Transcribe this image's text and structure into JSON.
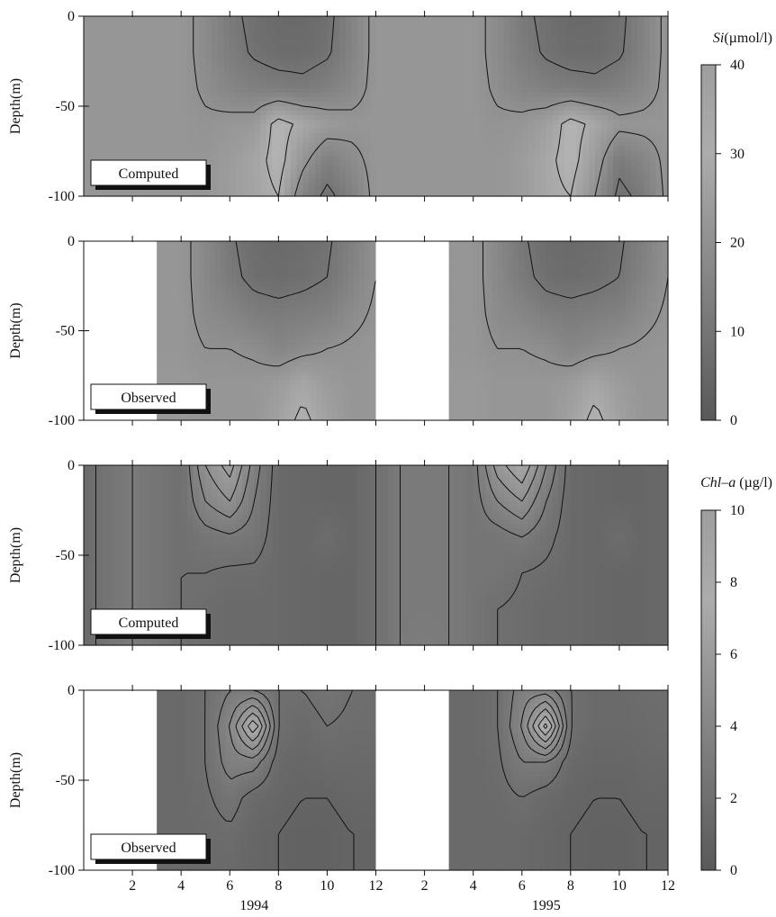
{
  "chart_data": [
    {
      "type": "heatmap",
      "variable": "Si",
      "panel_label": "Computed",
      "ylabel": "Depth(m)",
      "ylim": [
        -100,
        0
      ],
      "yticks": [
        "0",
        "-50",
        "-100"
      ],
      "xlim_months": [
        0,
        24
      ],
      "contour_levels": [
        10,
        20,
        30
      ],
      "observed_data_gaps": [],
      "profile_months": [
        0,
        1,
        2,
        3,
        4,
        5,
        6,
        7,
        8,
        9,
        10,
        11,
        12,
        13,
        14,
        15,
        16,
        17,
        18,
        19,
        20,
        21,
        22,
        23,
        24
      ],
      "profile_depths": [
        0,
        -20,
        -40,
        -60,
        -80,
        -100
      ],
      "values": [
        [
          22,
          22,
          22,
          22,
          22,
          22
        ],
        [
          22,
          22,
          22,
          22,
          22,
          22
        ],
        [
          22,
          22,
          22,
          22,
          22,
          22
        ],
        [
          22,
          22,
          22,
          22,
          22,
          22
        ],
        [
          22,
          22,
          22,
          22,
          22,
          22
        ],
        [
          18,
          18,
          19,
          21,
          22,
          22
        ],
        [
          12,
          13,
          16,
          22,
          24,
          24
        ],
        [
          8,
          9,
          14,
          23,
          27,
          27
        ],
        [
          6,
          7,
          13,
          33,
          33,
          30
        ],
        [
          6,
          7,
          12,
          28,
          22,
          15
        ],
        [
          8,
          9,
          14,
          24,
          14,
          8
        ],
        [
          15,
          15,
          17,
          22,
          18,
          14
        ],
        [
          22,
          22,
          22,
          22,
          22,
          22
        ],
        [
          22,
          22,
          22,
          22,
          22,
          22
        ],
        [
          22,
          22,
          22,
          22,
          22,
          22
        ],
        [
          22,
          22,
          22,
          22,
          22,
          22
        ],
        [
          22,
          22,
          22,
          22,
          22,
          22
        ],
        [
          18,
          18,
          19,
          21,
          22,
          22
        ],
        [
          12,
          13,
          16,
          22,
          24,
          24
        ],
        [
          8,
          9,
          14,
          25,
          28,
          28
        ],
        [
          6,
          7,
          13,
          33,
          33,
          30
        ],
        [
          6,
          7,
          12,
          28,
          24,
          20
        ],
        [
          8,
          9,
          14,
          22,
          12,
          8
        ],
        [
          15,
          15,
          17,
          22,
          16,
          12
        ],
        [
          22,
          22,
          22,
          22,
          22,
          22
        ]
      ]
    },
    {
      "type": "heatmap",
      "variable": "Si",
      "panel_label": "Observed",
      "ylabel": "Depth(m)",
      "ylim": [
        -100,
        0
      ],
      "yticks": [
        "0",
        "-50",
        "-100"
      ],
      "xlim_months": [
        0,
        24
      ],
      "contour_levels": [
        10,
        20,
        30
      ],
      "observed_data_gaps": [
        [
          0,
          3
        ],
        [
          12,
          15
        ]
      ],
      "profile_months": [
        3,
        4,
        5,
        6,
        7,
        8,
        9,
        10,
        11,
        12,
        15,
        16,
        17,
        18,
        19,
        20,
        21,
        22,
        23,
        24
      ],
      "profile_depths": [
        0,
        -20,
        -40,
        -60,
        -80,
        -100
      ],
      "values": [
        [
          22,
          22,
          22,
          22,
          23,
          23
        ],
        [
          22,
          22,
          22,
          22,
          23,
          23
        ],
        [
          17,
          17,
          18,
          20,
          22,
          22
        ],
        [
          11,
          12,
          16,
          20,
          22,
          22
        ],
        [
          7,
          8,
          13,
          19,
          22,
          22
        ],
        [
          6,
          7,
          12,
          16,
          24,
          26
        ],
        [
          7,
          8,
          13,
          18,
          28,
          32
        ],
        [
          9,
          10,
          14,
          20,
          24,
          26
        ],
        [
          14,
          15,
          18,
          21,
          22,
          22
        ],
        [
          20,
          20,
          21,
          22,
          22,
          22
        ],
        [
          22,
          22,
          22,
          22,
          23,
          23
        ],
        [
          22,
          22,
          22,
          22,
          23,
          23
        ],
        [
          17,
          17,
          18,
          20,
          22,
          22
        ],
        [
          11,
          12,
          16,
          20,
          22,
          22
        ],
        [
          7,
          8,
          13,
          19,
          22,
          22
        ],
        [
          6,
          7,
          12,
          16,
          24,
          26
        ],
        [
          7,
          8,
          13,
          18,
          28,
          32
        ],
        [
          9,
          10,
          14,
          20,
          24,
          26
        ],
        [
          14,
          15,
          18,
          21,
          22,
          22
        ],
        [
          20,
          20,
          21,
          22,
          22,
          22
        ]
      ]
    },
    {
      "type": "heatmap",
      "variable": "Chl-a",
      "panel_label": "Computed",
      "ylabel": "Depth(m)",
      "ylim": [
        -100,
        0
      ],
      "yticks": [
        "0",
        "-50",
        "-100"
      ],
      "xlim_months": [
        0,
        24
      ],
      "contour_levels": [
        2,
        3,
        4,
        5,
        6,
        7,
        8
      ],
      "observed_data_gaps": [],
      "profile_months": [
        0,
        1,
        2,
        3,
        4,
        5,
        6,
        7,
        8,
        9,
        10,
        11,
        12,
        13,
        14,
        15,
        16,
        17,
        18,
        19,
        20,
        21,
        22,
        23,
        24
      ],
      "profile_depths": [
        0,
        -20,
        -40,
        -60,
        -80,
        -100
      ],
      "values": [
        [
          1.5,
          1.5,
          1.5,
          1.5,
          1.5,
          1.5
        ],
        [
          2.5,
          2.5,
          2.5,
          2.5,
          2.5,
          2.5
        ],
        [
          3.0,
          3.0,
          3.0,
          3.0,
          3.0,
          3.0
        ],
        [
          2.5,
          2.5,
          2.5,
          2.5,
          2.5,
          2.5
        ],
        [
          2.0,
          2.0,
          2.0,
          2.0,
          2.0,
          2.0
        ],
        [
          5.0,
          4.0,
          2.5,
          2.0,
          1.8,
          1.8
        ],
        [
          6.5,
          5.0,
          2.8,
          1.8,
          1.5,
          1.5
        ],
        [
          3.5,
          3.0,
          2.5,
          1.8,
          1.5,
          1.5
        ],
        [
          1.5,
          1.5,
          1.5,
          1.5,
          1.5,
          1.5
        ],
        [
          1.3,
          1.3,
          1.3,
          1.3,
          1.3,
          1.3
        ],
        [
          1.2,
          1.2,
          1.8,
          1.2,
          1.2,
          1.2
        ],
        [
          1.2,
          1.2,
          1.2,
          1.2,
          1.2,
          1.2
        ],
        [
          2.0,
          2.0,
          2.0,
          2.0,
          2.0,
          2.0
        ],
        [
          3.0,
          3.0,
          3.0,
          3.0,
          3.0,
          3.0
        ],
        [
          3.0,
          3.0,
          3.0,
          3.0,
          3.0,
          3.2
        ],
        [
          3.0,
          3.0,
          3.0,
          3.0,
          3.0,
          3.0
        ],
        [
          2.5,
          2.5,
          2.5,
          2.5,
          2.5,
          2.5
        ],
        [
          5.5,
          4.0,
          2.5,
          2.5,
          2.0,
          2.0
        ],
        [
          7.0,
          5.0,
          3.0,
          2.0,
          1.8,
          1.8
        ],
        [
          4.0,
          3.0,
          2.3,
          1.8,
          1.5,
          1.5
        ],
        [
          1.5,
          1.5,
          1.5,
          1.5,
          1.5,
          1.5
        ],
        [
          1.3,
          1.3,
          1.3,
          1.3,
          1.3,
          1.3
        ],
        [
          1.2,
          1.2,
          1.8,
          1.2,
          1.2,
          1.2
        ],
        [
          1.2,
          1.2,
          1.2,
          1.2,
          1.2,
          1.2
        ],
        [
          1.5,
          1.5,
          1.5,
          1.5,
          1.5,
          1.5
        ]
      ]
    },
    {
      "type": "heatmap",
      "variable": "Chl-a",
      "panel_label": "Observed",
      "ylabel": "Depth(m)",
      "ylim": [
        -100,
        0
      ],
      "yticks": [
        "0",
        "-50",
        "-100"
      ],
      "xlim_months": [
        0,
        24
      ],
      "contour_levels": [
        1,
        2,
        3,
        4,
        5,
        6,
        7,
        8,
        9
      ],
      "observed_data_gaps": [
        [
          0,
          3
        ],
        [
          12,
          15
        ]
      ],
      "profile_months": [
        3,
        4,
        5,
        6,
        7,
        8,
        9,
        10,
        11,
        12,
        15,
        16,
        17,
        18,
        19,
        20,
        21,
        22,
        23,
        24
      ],
      "profile_depths": [
        0,
        -20,
        -40,
        -60,
        -80,
        -100
      ],
      "values": [
        [
          1.5,
          1.5,
          1.5,
          1.5,
          1.5,
          1.5
        ],
        [
          1.5,
          1.5,
          1.5,
          1.5,
          1.5,
          1.5
        ],
        [
          2.0,
          2.0,
          2.0,
          1.8,
          1.6,
          1.5
        ],
        [
          3.0,
          4.0,
          3.5,
          2.5,
          1.8,
          1.5
        ],
        [
          3.0,
          8.0,
          3.5,
          1.5,
          1.2,
          1.2
        ],
        [
          2.0,
          2.0,
          1.5,
          1.2,
          1.0,
          1.0
        ],
        [
          2.0,
          1.5,
          1.2,
          1.0,
          0.8,
          0.8
        ],
        [
          2.5,
          2.0,
          1.5,
          1.0,
          0.8,
          0.8
        ],
        [
          2.0,
          1.8,
          1.5,
          1.2,
          1.0,
          1.0
        ],
        [
          1.8,
          1.8,
          1.5,
          1.2,
          1.0,
          1.0
        ],
        [
          1.5,
          1.5,
          1.5,
          1.5,
          1.5,
          1.5
        ],
        [
          1.5,
          1.5,
          1.5,
          1.5,
          1.5,
          1.5
        ],
        [
          2.0,
          2.0,
          1.8,
          1.6,
          1.5,
          1.5
        ],
        [
          3.5,
          4.0,
          3.0,
          2.0,
          1.5,
          1.5
        ],
        [
          3.5,
          8.5,
          3.0,
          1.5,
          1.2,
          1.2
        ],
        [
          2.0,
          2.0,
          1.5,
          1.2,
          1.0,
          1.0
        ],
        [
          1.5,
          1.5,
          1.2,
          1.0,
          0.8,
          0.8
        ],
        [
          1.5,
          1.5,
          1.2,
          1.0,
          0.8,
          0.8
        ],
        [
          1.8,
          1.6,
          1.4,
          1.2,
          1.0,
          1.0
        ],
        [
          1.8,
          1.8,
          1.5,
          1.2,
          1.0,
          1.0
        ]
      ]
    }
  ],
  "x_axis": {
    "tick_labels": [
      "2",
      "4",
      "6",
      "8",
      "10",
      "12",
      "2",
      "4",
      "6",
      "8",
      "10",
      "12"
    ],
    "tick_months": [
      2,
      4,
      6,
      8,
      10,
      12,
      14,
      16,
      18,
      20,
      22,
      24
    ],
    "year_labels": [
      "1994",
      "1995"
    ],
    "year_center_months": [
      7,
      19
    ]
  },
  "colorbars": [
    {
      "title_italic": "Si",
      "title_unit": "(µmol/l)",
      "min": 0,
      "max": 40,
      "tick_labels": [
        "0",
        "10",
        "20",
        "30",
        "40"
      ],
      "tick_values": [
        0,
        10,
        20,
        30,
        40
      ]
    },
    {
      "title_italic": "Chl–a",
      "title_unit": " (µg/l)",
      "min": 0,
      "max": 10,
      "tick_labels": [
        "0",
        "2",
        "4",
        "6",
        "8",
        "10"
      ],
      "tick_values": [
        0,
        2,
        4,
        6,
        8,
        10
      ]
    }
  ],
  "colors": {
    "gray_low": "#595959",
    "gray_high": "#c8c8c8",
    "contour": "#111111",
    "gap": "#ffffff"
  }
}
